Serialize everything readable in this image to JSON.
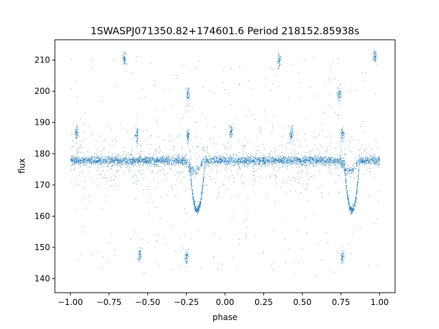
{
  "chart_data": {
    "type": "scatter",
    "title": "1SWASPJ071350.82+174601.6 Period 218152.85938s",
    "xlabel": "phase",
    "ylabel": "flux",
    "xlim": [
      -1.1,
      1.1
    ],
    "ylim": [
      135.5,
      216.5
    ],
    "xticks": [
      -1.0,
      -0.75,
      -0.5,
      -0.25,
      0.0,
      0.25,
      0.5,
      0.75,
      1.0
    ],
    "xtick_labels": [
      "−1.00",
      "−0.75",
      "−0.50",
      "−0.25",
      "0.00",
      "0.25",
      "0.50",
      "0.75",
      "1.00"
    ],
    "yticks": [
      140,
      150,
      160,
      170,
      180,
      190,
      200,
      210
    ],
    "ytick_labels": [
      "140",
      "150",
      "160",
      "170",
      "180",
      "190",
      "200",
      "210"
    ],
    "grid": false,
    "point_color": "#1f77b4",
    "baseline_flux": 177.8,
    "eclipse_shallow": {
      "phase": -0.2,
      "min_flux": 174.5
    },
    "eclipse_deep": {
      "phase": -0.18,
      "min_flux": 162
    },
    "secondary_clumps": [
      {
        "phase": -0.96,
        "flux": 187
      },
      {
        "phase": -0.65,
        "flux": 210
      },
      {
        "phase": -0.57,
        "flux": 186
      },
      {
        "phase": -0.55,
        "flux": 148
      },
      {
        "phase": -0.24,
        "flux": 199
      },
      {
        "phase": -0.24,
        "flux": 186
      },
      {
        "phase": -0.25,
        "flux": 147
      },
      {
        "phase": 0.04,
        "flux": 187
      },
      {
        "phase": 0.35,
        "flux": 210
      },
      {
        "phase": 0.43,
        "flux": 186
      },
      {
        "phase": 0.74,
        "flux": 199
      },
      {
        "phase": 0.76,
        "flux": 186
      },
      {
        "phase": 0.76,
        "flux": 147
      },
      {
        "phase": 0.97,
        "flux": 211
      }
    ]
  }
}
